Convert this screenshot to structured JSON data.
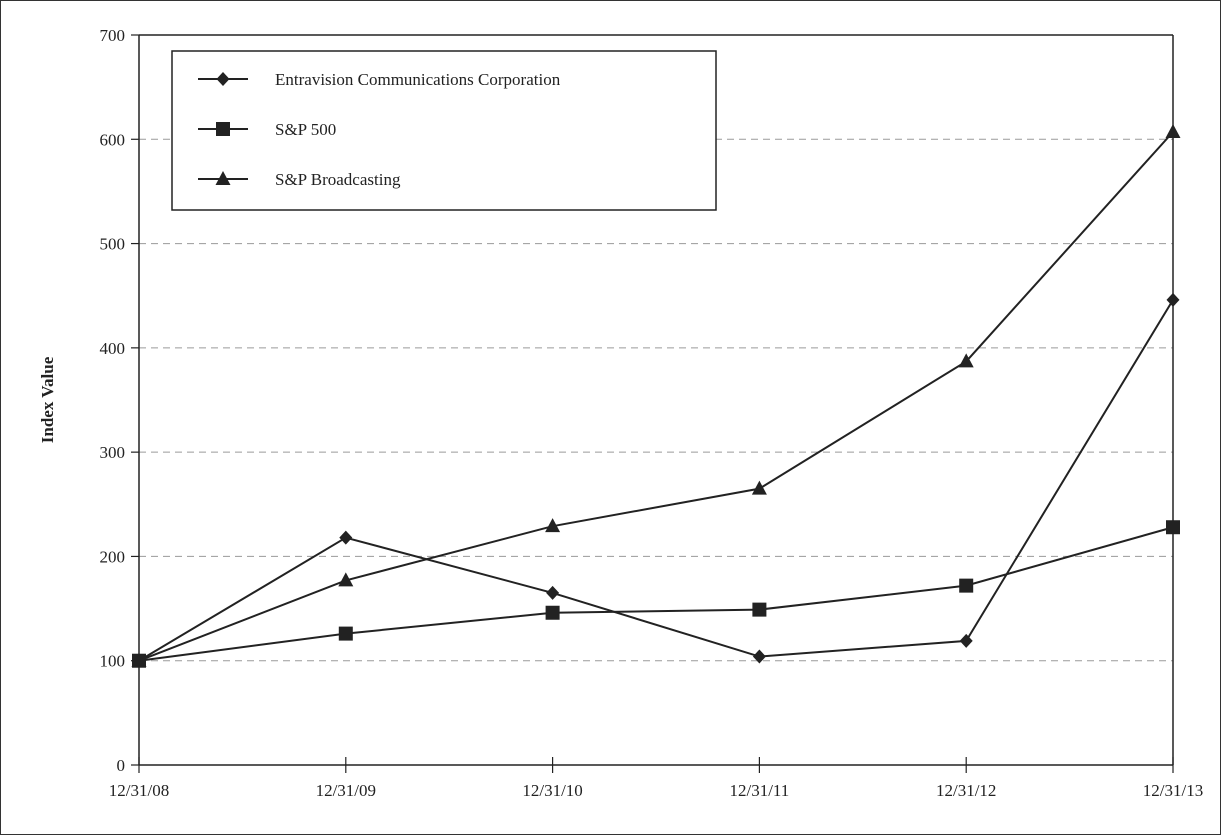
{
  "chart_data": {
    "type": "line",
    "title": "",
    "xlabel": "",
    "ylabel": "Index Value",
    "categories": [
      "12/31/08",
      "12/31/09",
      "12/31/10",
      "12/31/11",
      "12/31/12",
      "12/31/13"
    ],
    "ylim": [
      0,
      700
    ],
    "yticks": [
      0,
      100,
      200,
      300,
      400,
      500,
      600,
      700
    ],
    "grid": true,
    "grid_style": "dashed horizontal",
    "legend_position": "top-left",
    "series": [
      {
        "name": "Entravision Communications Corporation",
        "marker": "diamond",
        "values": [
          100,
          218,
          165,
          104,
          119,
          446
        ]
      },
      {
        "name": "S&P 500",
        "marker": "square",
        "values": [
          100,
          126,
          146,
          149,
          172,
          228
        ]
      },
      {
        "name": "S&P Broadcasting",
        "marker": "triangle",
        "values": [
          100,
          177,
          229,
          265,
          387,
          607
        ]
      }
    ],
    "colors": {
      "line": "#222222",
      "grid": "#9a9a9a",
      "frame": "#333333"
    }
  }
}
